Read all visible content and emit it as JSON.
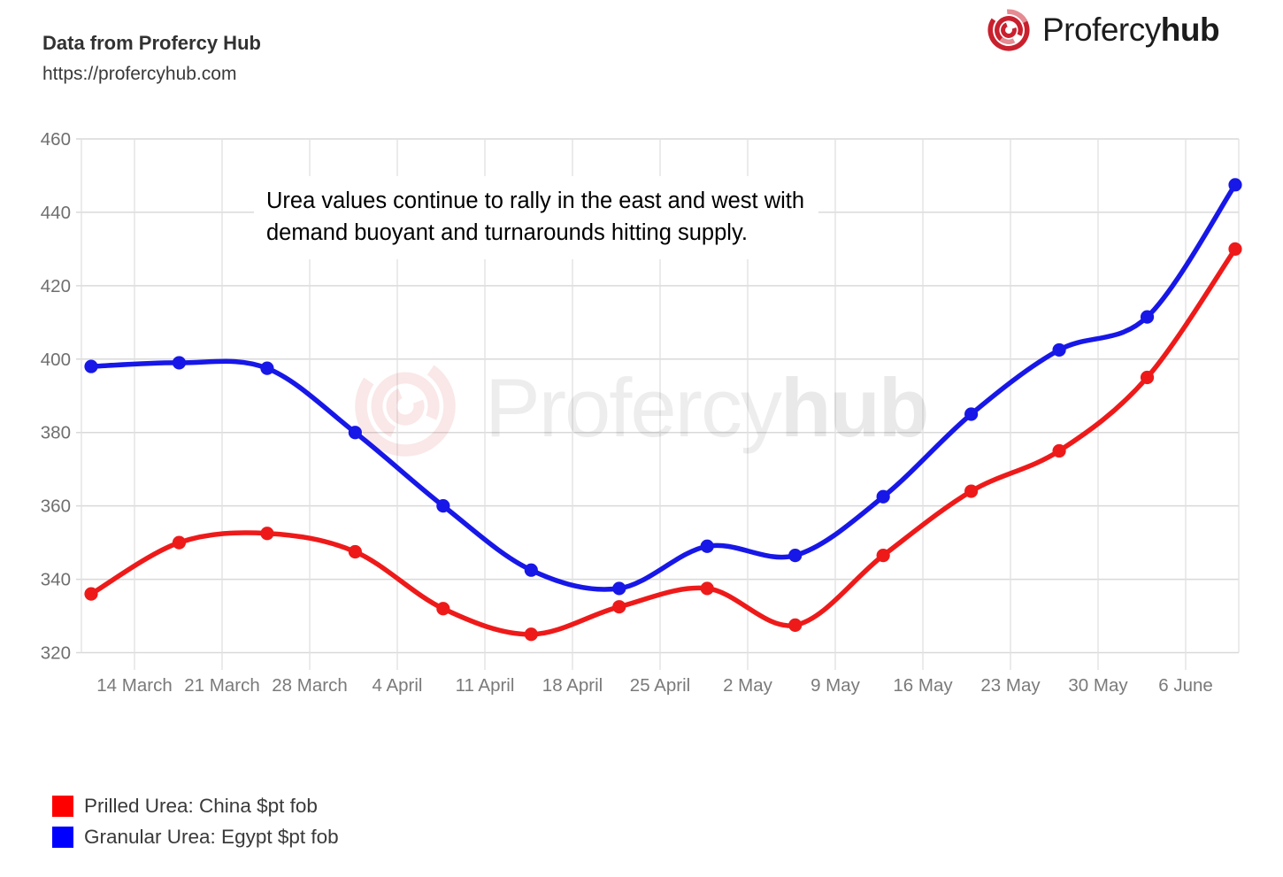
{
  "header": {
    "title": "Data from Profercy Hub",
    "url": "https://profercyhub.com"
  },
  "logo": {
    "name_regular": "Profercy",
    "name_bold": "hub",
    "icon": "profercy-swirl-icon",
    "icon_color": "#c9202e"
  },
  "annotation": {
    "text": "Urea values continue to rally in the east and west with\ndemand buoyant and turnarounds hitting supply."
  },
  "watermark": {
    "name_regular": "Profercy",
    "name_bold": "hub"
  },
  "chart_data": {
    "type": "line",
    "x_tick_labels": [
      "14 March",
      "21 March",
      "28 March",
      "4 April",
      "11 April",
      "18 April",
      "25 April",
      "2 May",
      "9 May",
      "16 May",
      "23 May",
      "30 May",
      "6 June"
    ],
    "x_layout_note": "14 weekly data points; each marker sits about half a week left of its tick gridline, last point is right of the 6 June tick",
    "ylim": [
      320,
      460
    ],
    "ytick_step": 20,
    "grid": true,
    "series": [
      {
        "name": "Prilled Urea: China $pt fob",
        "color": "#ee1a1a",
        "values": [
          336,
          350,
          352.5,
          347.5,
          332,
          325,
          332.5,
          337.5,
          327.5,
          346.5,
          364,
          375,
          395,
          430
        ]
      },
      {
        "name": "Granular Urea: Egypt $pt fob",
        "color": "#1717e8",
        "values": [
          398,
          399,
          397.5,
          380,
          360,
          342.5,
          337.5,
          349,
          346.5,
          362.5,
          385,
          402.5,
          411.5,
          447.5
        ]
      }
    ],
    "legend_position": "bottom-left"
  },
  "legend": {
    "items": [
      {
        "label": "Prilled Urea: China $pt fob",
        "swatch_color": "#ff0000"
      },
      {
        "label": "Granular Urea: Egypt $pt fob",
        "swatch_color": "#0000ff"
      }
    ]
  }
}
